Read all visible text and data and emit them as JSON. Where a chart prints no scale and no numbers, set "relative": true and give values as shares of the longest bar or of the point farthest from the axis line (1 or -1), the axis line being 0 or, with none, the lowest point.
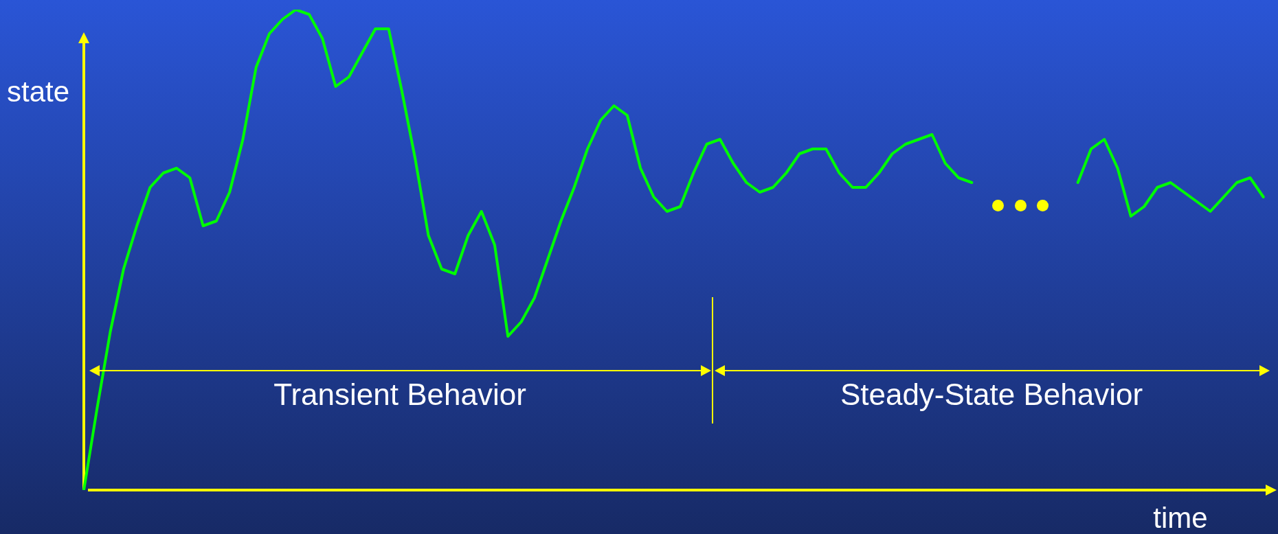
{
  "chart_data": {
    "type": "line",
    "xlabel": "time",
    "ylabel": "state",
    "relative": true,
    "grid": false,
    "legend": false,
    "marker": "none",
    "line_style": "solid",
    "categories": [
      null,
      null,
      null,
      null,
      null,
      null,
      null,
      null,
      null,
      null,
      null,
      null,
      null,
      null,
      null,
      null,
      null,
      null,
      null,
      null,
      null,
      null,
      null,
      null,
      null,
      null,
      null,
      null,
      null,
      null,
      null,
      null,
      null,
      null,
      null,
      null,
      null,
      null,
      null,
      null,
      null,
      null,
      null,
      null,
      null,
      null,
      null,
      null,
      null,
      null,
      null,
      null,
      null,
      null,
      null,
      null,
      null,
      null,
      null,
      null,
      null,
      null,
      null,
      null,
      null,
      null,
      null,
      null,
      null,
      null,
      null,
      null,
      null,
      null,
      null,
      null,
      null,
      null,
      null,
      null,
      null,
      null,
      null,
      null,
      null,
      null,
      null,
      null,
      null,
      null,
      null
    ],
    "series": [
      {
        "color": "#00ff00",
        "values": [
          0,
          0.17,
          0.33,
          0.46,
          0.55,
          0.63,
          0.66,
          0.67,
          0.65,
          0.55,
          0.56,
          0.62,
          0.73,
          0.88,
          0.95,
          0.98,
          1,
          0.99,
          0.94,
          0.84,
          0.86,
          0.91,
          0.96,
          0.96,
          0.83,
          0.69,
          0.53,
          0.46,
          0.45,
          0.53,
          0.58,
          0.51,
          0.32,
          0.35,
          0.4,
          0.48,
          0.56,
          0.63,
          0.71,
          0.77,
          0.8,
          0.78,
          0.67,
          0.61,
          0.58,
          0.59,
          0.66,
          0.72,
          0.73,
          0.68,
          0.64,
          0.62,
          0.63,
          0.66,
          0.7,
          0.71,
          0.71,
          0.66,
          0.63,
          0.63,
          0.66,
          0.7,
          0.72,
          0.73,
          0.74,
          0.68,
          0.65,
          0.64,
          null,
          null,
          null,
          null,
          null,
          null,
          null,
          null,
          null,
          null,
          null,
          null,
          null,
          null,
          null,
          null,
          null,
          null,
          null,
          null,
          null,
          null,
          null
        ]
      },
      {
        "color": "#00ff00",
        "values": [
          null,
          null,
          null,
          null,
          null,
          null,
          null,
          null,
          null,
          null,
          null,
          null,
          null,
          null,
          null,
          null,
          null,
          null,
          null,
          null,
          null,
          null,
          null,
          null,
          null,
          null,
          null,
          null,
          null,
          null,
          null,
          null,
          null,
          null,
          null,
          null,
          null,
          null,
          null,
          null,
          null,
          null,
          null,
          null,
          null,
          null,
          null,
          null,
          null,
          null,
          null,
          null,
          null,
          null,
          null,
          null,
          null,
          null,
          null,
          null,
          null,
          null,
          null,
          null,
          null,
          null,
          null,
          null,
          null,
          null,
          null,
          null,
          null,
          null,
          null,
          0.64,
          0.71,
          0.73,
          0.67,
          0.57,
          0.59,
          0.63,
          0.64,
          0.62,
          0.6,
          0.58,
          0.61,
          0.64,
          0.65,
          0.61,
          null
        ]
      }
    ],
    "annotations": [
      "Transient Behavior",
      "Steady-State Behavior"
    ]
  }
}
